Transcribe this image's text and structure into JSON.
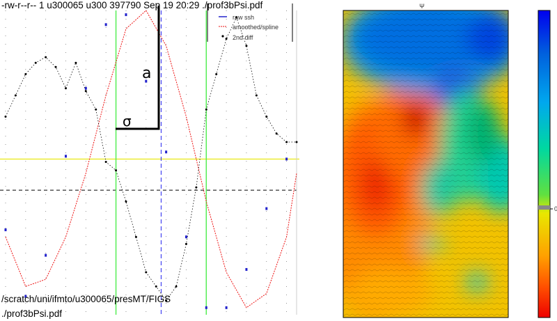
{
  "header_text": "-rw-r--r-- 1 u300065 u300 397790 Sep 19 20:29 ./prof3bPsi.pdf",
  "footer_path_line1": "/scratch/uni/ifmto/u300065/presMT/FIGS",
  "footer_path_line2": "./prof3bPsi.pdf",
  "chart_data": [
    {
      "type": "line",
      "title": "",
      "xlabel": "",
      "ylabel": "",
      "xlim": [
        0,
        29
      ],
      "ylim": [
        -1.1,
        1.05
      ],
      "legend": {
        "placement": "top-right",
        "entries": [
          "raw ssh",
          "amoothed/spline",
          "2nd diff"
        ]
      },
      "annotations": {
        "peak_label": "a",
        "width_label": "σ"
      },
      "series": [
        {
          "name": "raw ssh",
          "color": "#2222cc",
          "x": [
            0,
            2,
            4,
            6,
            8,
            10,
            12,
            14,
            16,
            18,
            20,
            22,
            24,
            26,
            28
          ],
          "y": [
            -0.5,
            -0.97,
            -0.68,
            0.02,
            0.5,
            0.95,
            1.02,
            0.55,
            0.05,
            -0.55,
            -1.05,
            -1.05,
            -0.78,
            -0.35,
            0.0
          ]
        },
        {
          "name": "amoothed/spline",
          "color": "#ee1111",
          "x": [
            0,
            2,
            4,
            6,
            8,
            10,
            12,
            14,
            16,
            18,
            20,
            22,
            24,
            26,
            28,
            29
          ],
          "y": [
            -0.55,
            -0.9,
            -0.85,
            -0.55,
            -0.1,
            0.45,
            0.92,
            1.05,
            0.8,
            0.3,
            -0.3,
            -0.8,
            -1.05,
            -0.95,
            -0.55,
            -0.1
          ]
        },
        {
          "name": "2nd diff",
          "color": "#000000",
          "x": [
            0,
            1,
            2,
            3,
            4,
            5,
            6,
            7,
            8,
            9,
            10,
            11,
            12,
            13,
            14,
            15,
            16,
            17,
            18,
            19,
            20,
            21,
            22,
            23,
            24,
            25,
            26,
            27,
            28,
            29
          ],
          "y": [
            0.3,
            0.45,
            0.6,
            0.68,
            0.72,
            0.65,
            0.5,
            0.68,
            0.48,
            0.35,
            -0.02,
            -0.08,
            -0.3,
            -0.55,
            -0.8,
            -0.9,
            -1.0,
            -0.9,
            -0.6,
            -0.2,
            0.35,
            0.6,
            0.85,
            1.0,
            0.8,
            0.45,
            0.3,
            0.18,
            0.12,
            0.12
          ]
        }
      ],
      "reference_lines": {
        "yellow_h": 0.0,
        "dashed_black_h": -0.22,
        "green_v": [
          11,
          20
        ],
        "blue_dashed_v": 15.5
      }
    },
    {
      "type": "heatmap",
      "title": "Ψ",
      "colorbar": {
        "zero_label": "0",
        "colormap": [
          "#0000ee",
          "#0070dd",
          "#00aaff",
          "#00d0a0",
          "#22e060",
          "#e0e000",
          "#ff9900",
          "#ff4400",
          "#dd0000"
        ]
      }
    }
  ]
}
